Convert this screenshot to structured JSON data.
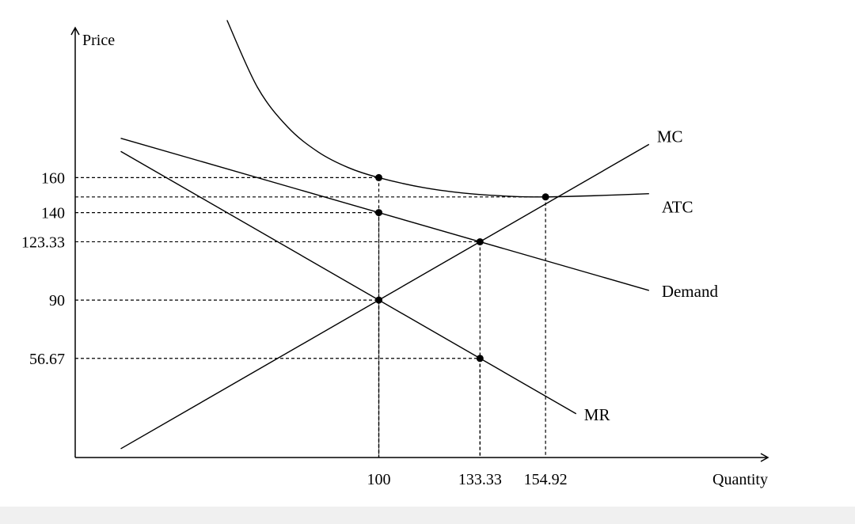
{
  "chart_data": {
    "type": "line",
    "title": "",
    "xlabel": "Quantity",
    "ylabel": "Price",
    "xlim": [
      0,
      230
    ],
    "ylim": [
      0,
      250
    ],
    "grid": false,
    "x_ticks": [
      {
        "value": 100,
        "label": "100"
      },
      {
        "value": 133.33,
        "label": "133.33"
      },
      {
        "value": 154.92,
        "label": "154.92"
      }
    ],
    "y_ticks": [
      {
        "value": 160,
        "label": "160"
      },
      {
        "value": 140,
        "label": "140"
      },
      {
        "value": 123.33,
        "label": "123.33"
      },
      {
        "value": 90,
        "label": "90"
      },
      {
        "value": 56.67,
        "label": "56.67"
      }
    ],
    "series": [
      {
        "name": "Demand",
        "points": [
          [
            15,
            182.5
          ],
          [
            189,
            95.5
          ]
        ]
      },
      {
        "name": "MR",
        "points": [
          [
            15,
            175
          ],
          [
            165,
            25
          ]
        ]
      },
      {
        "name": "MC",
        "points": [
          [
            15,
            5
          ],
          [
            189,
            179
          ]
        ]
      },
      {
        "name": "ATC",
        "points": [
          [
            50,
            250
          ],
          [
            60,
            211.7
          ],
          [
            70,
            188.9
          ],
          [
            80,
            174.7
          ],
          [
            90,
            165.7
          ],
          [
            100,
            160
          ],
          [
            115,
            154.2
          ],
          [
            130,
            150.8
          ],
          [
            145,
            149.2
          ],
          [
            154.92,
            148.96
          ],
          [
            170,
            149.6
          ],
          [
            189,
            150.8
          ]
        ]
      }
    ],
    "points": [
      {
        "x": 100,
        "y": 160
      },
      {
        "x": 100,
        "y": 140
      },
      {
        "x": 100,
        "y": 90
      },
      {
        "x": 133.33,
        "y": 123.33
      },
      {
        "x": 133.33,
        "y": 56.67
      },
      {
        "x": 154.92,
        "y": 148.96
      }
    ],
    "guides": [
      {
        "x": 100,
        "y": 160
      },
      {
        "x": 100,
        "y": 140
      },
      {
        "x": 133.33,
        "y": 123.33
      },
      {
        "x": 100,
        "y": 90
      },
      {
        "x": 133.33,
        "y": 56.67
      },
      {
        "x": 154.92,
        "y": 148.96
      }
    ]
  }
}
